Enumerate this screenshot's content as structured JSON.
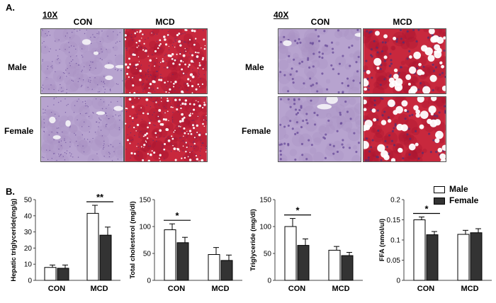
{
  "panel_a": {
    "letter": "A.",
    "groups": [
      {
        "magnification": "10X",
        "columns": [
          "CON",
          "MCD"
        ],
        "rows": [
          "Male",
          "Female"
        ]
      },
      {
        "magnification": "40X",
        "columns": [
          "CON",
          "MCD"
        ],
        "rows": [
          "Male",
          "Female"
        ]
      }
    ],
    "colors": {
      "con_tissue": "#b7a3cf",
      "mcd_tissue": "#c8283d",
      "nuclei": "#6b4f9b",
      "lipid": "#ffffff"
    }
  },
  "panel_b": {
    "letter": "B.",
    "legend": {
      "placement": "top-right",
      "entries": [
        "Male",
        "Female"
      ]
    },
    "colors": {
      "male": "#ffffff",
      "female": "#333333"
    }
  },
  "chart_data": [
    {
      "type": "bar",
      "categories": [
        "CON",
        "MCD"
      ],
      "ylabel": "Hepatic triglyceride(mg/g)",
      "ylim": [
        0,
        50
      ],
      "yticks": [
        0,
        10,
        20,
        30,
        40,
        50
      ],
      "series": [
        {
          "name": "Male",
          "values": [
            8,
            41.5
          ],
          "errors": [
            1.5,
            5
          ]
        },
        {
          "name": "Female",
          "values": [
            7.5,
            28
          ],
          "errors": [
            2,
            5
          ]
        }
      ],
      "annotations": [
        {
          "text": "**",
          "category": "MCD"
        }
      ]
    },
    {
      "type": "bar",
      "categories": [
        "CON",
        "MCD"
      ],
      "ylabel": "Total cholesterol (mg/dl)",
      "ylim": [
        0,
        150
      ],
      "yticks": [
        0,
        50,
        100,
        150
      ],
      "series": [
        {
          "name": "Male",
          "values": [
            94,
            48
          ],
          "errors": [
            11,
            13
          ]
        },
        {
          "name": "Female",
          "values": [
            70,
            37
          ],
          "errors": [
            10,
            10
          ]
        }
      ],
      "annotations": [
        {
          "text": "*",
          "category": "CON"
        }
      ]
    },
    {
      "type": "bar",
      "categories": [
        "CON",
        "MCD"
      ],
      "ylabel": "Triglyceride (mg/dl)",
      "ylim": [
        0,
        150
      ],
      "yticks": [
        0,
        50,
        100,
        150
      ],
      "series": [
        {
          "name": "Male",
          "values": [
            100,
            56
          ],
          "errors": [
            15,
            7
          ]
        },
        {
          "name": "Female",
          "values": [
            65,
            46
          ],
          "errors": [
            12,
            6
          ]
        }
      ],
      "annotations": [
        {
          "text": "*",
          "category": "CON"
        }
      ]
    },
    {
      "type": "bar",
      "categories": [
        "CON",
        "MCD"
      ],
      "ylabel": "FFA (nmol/ul)",
      "ylim": [
        0,
        0.2
      ],
      "yticks": [
        0,
        0.05,
        0.1,
        0.15,
        0.2
      ],
      "series": [
        {
          "name": "Male",
          "values": [
            0.15,
            0.114
          ],
          "errors": [
            0.007,
            0.01
          ]
        },
        {
          "name": "Female",
          "values": [
            0.113,
            0.118
          ],
          "errors": [
            0.008,
            0.01
          ]
        }
      ],
      "annotations": [
        {
          "text": "*",
          "category": "CON"
        }
      ]
    }
  ]
}
